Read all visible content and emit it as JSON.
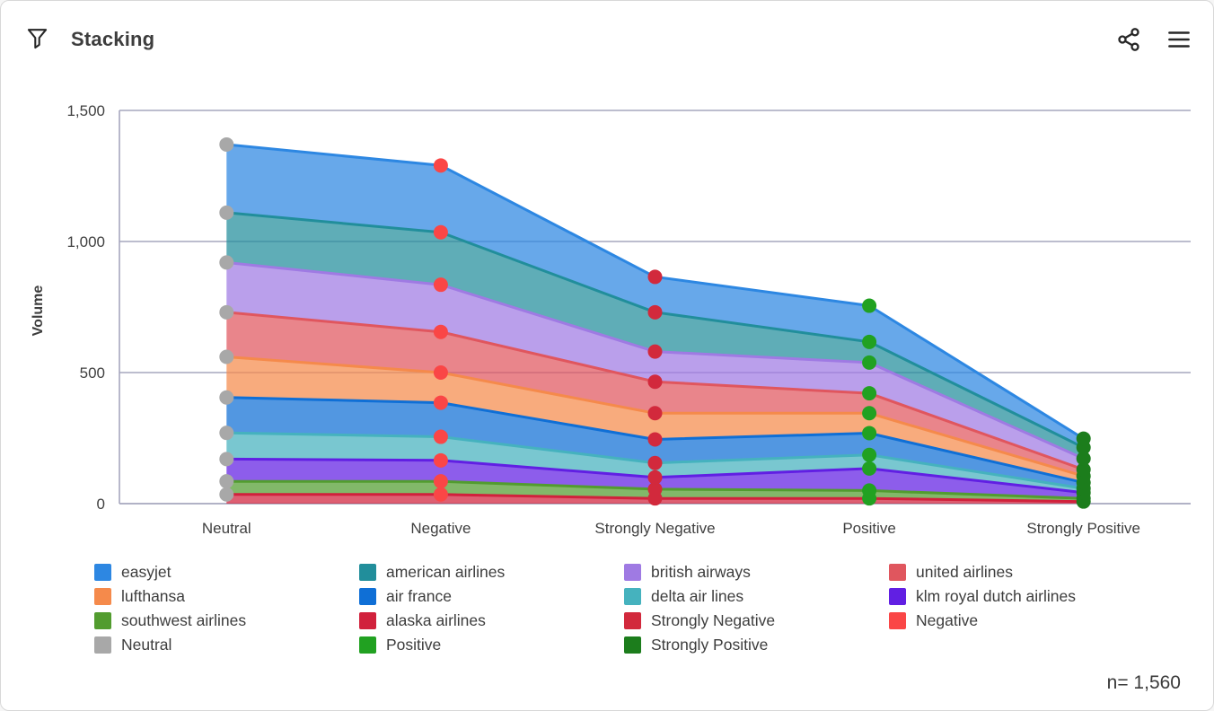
{
  "header": {
    "title": "Stacking",
    "filter_icon": "funnel-icon",
    "share_icon": "share-icon",
    "menu_icon": "hamburger-icon"
  },
  "footer": {
    "sample_label": "n= 1,560"
  },
  "chart_data": {
    "type": "area",
    "stacked": true,
    "title": "Stacking",
    "xlabel": "",
    "ylabel": "Volume",
    "categories": [
      "Neutral",
      "Negative",
      "Strongly Negative",
      "Positive",
      "Strongly Positive"
    ],
    "yticks": [
      0,
      500,
      1000,
      1500
    ],
    "ytick_labels": [
      "0",
      "500",
      "1,000",
      "1,500"
    ],
    "ylim": [
      0,
      1500
    ],
    "grid": true,
    "legend_position": "bottom",
    "point_colors_by_category": {
      "Neutral": "#a8a8a8",
      "Negative": "#fa4646",
      "Strongly Negative": "#d2293c",
      "Positive": "#21a121",
      "Strongly Positive": "#1c7d1c"
    },
    "stack_order_note": "first series is bottom of stack",
    "series": [
      {
        "name": "alaska airlines",
        "color": "#d1213c",
        "values": [
          35,
          35,
          20,
          20,
          8
        ]
      },
      {
        "name": "southwest airlines",
        "color": "#529c2f",
        "values": [
          50,
          50,
          35,
          30,
          12
        ]
      },
      {
        "name": "klm royal dutch airlines",
        "color": "#611fe3",
        "values": [
          85,
          80,
          45,
          84,
          22
        ]
      },
      {
        "name": "delta air lines",
        "color": "#45b2be",
        "values": [
          100,
          90,
          55,
          52,
          16
        ]
      },
      {
        "name": "air france",
        "color": "#0f6fd6",
        "values": [
          135,
          130,
          90,
          83,
          22
        ]
      },
      {
        "name": "lufthansa",
        "color": "#f58a4b",
        "values": [
          155,
          115,
          100,
          76,
          25
        ]
      },
      {
        "name": "united airlines",
        "color": "#e0565e",
        "values": [
          170,
          155,
          120,
          76,
          25
        ]
      },
      {
        "name": "british airways",
        "color": "#9f7ae3",
        "values": [
          190,
          180,
          115,
          117,
          42
        ]
      },
      {
        "name": "american airlines",
        "color": "#218e9b",
        "values": [
          190,
          200,
          150,
          79,
          42
        ]
      },
      {
        "name": "easyjet",
        "color": "#2d87e2",
        "values": [
          260,
          255,
          135,
          138,
          34
        ]
      }
    ],
    "stack_totals": [
      1370,
      1290,
      865,
      755,
      248
    ]
  },
  "legend": {
    "items": [
      {
        "label": "easyjet",
        "color": "#2d87e2"
      },
      {
        "label": "american airlines",
        "color": "#218e9b"
      },
      {
        "label": "british airways",
        "color": "#9f7ae3"
      },
      {
        "label": "united airlines",
        "color": "#e0565e"
      },
      {
        "label": "lufthansa",
        "color": "#f58a4b"
      },
      {
        "label": "air france",
        "color": "#0f6fd6"
      },
      {
        "label": "delta air lines",
        "color": "#45b2be"
      },
      {
        "label": "klm royal dutch airlines",
        "color": "#611fe3"
      },
      {
        "label": "southwest airlines",
        "color": "#529c2f"
      },
      {
        "label": "alaska airlines",
        "color": "#d1213c"
      },
      {
        "label": "Strongly Negative",
        "color": "#d2293c"
      },
      {
        "label": "Negative",
        "color": "#fa4646"
      },
      {
        "label": "Neutral",
        "color": "#a8a8a8"
      },
      {
        "label": "Positive",
        "color": "#21a121"
      },
      {
        "label": "Strongly Positive",
        "color": "#1c7d1c"
      }
    ]
  }
}
